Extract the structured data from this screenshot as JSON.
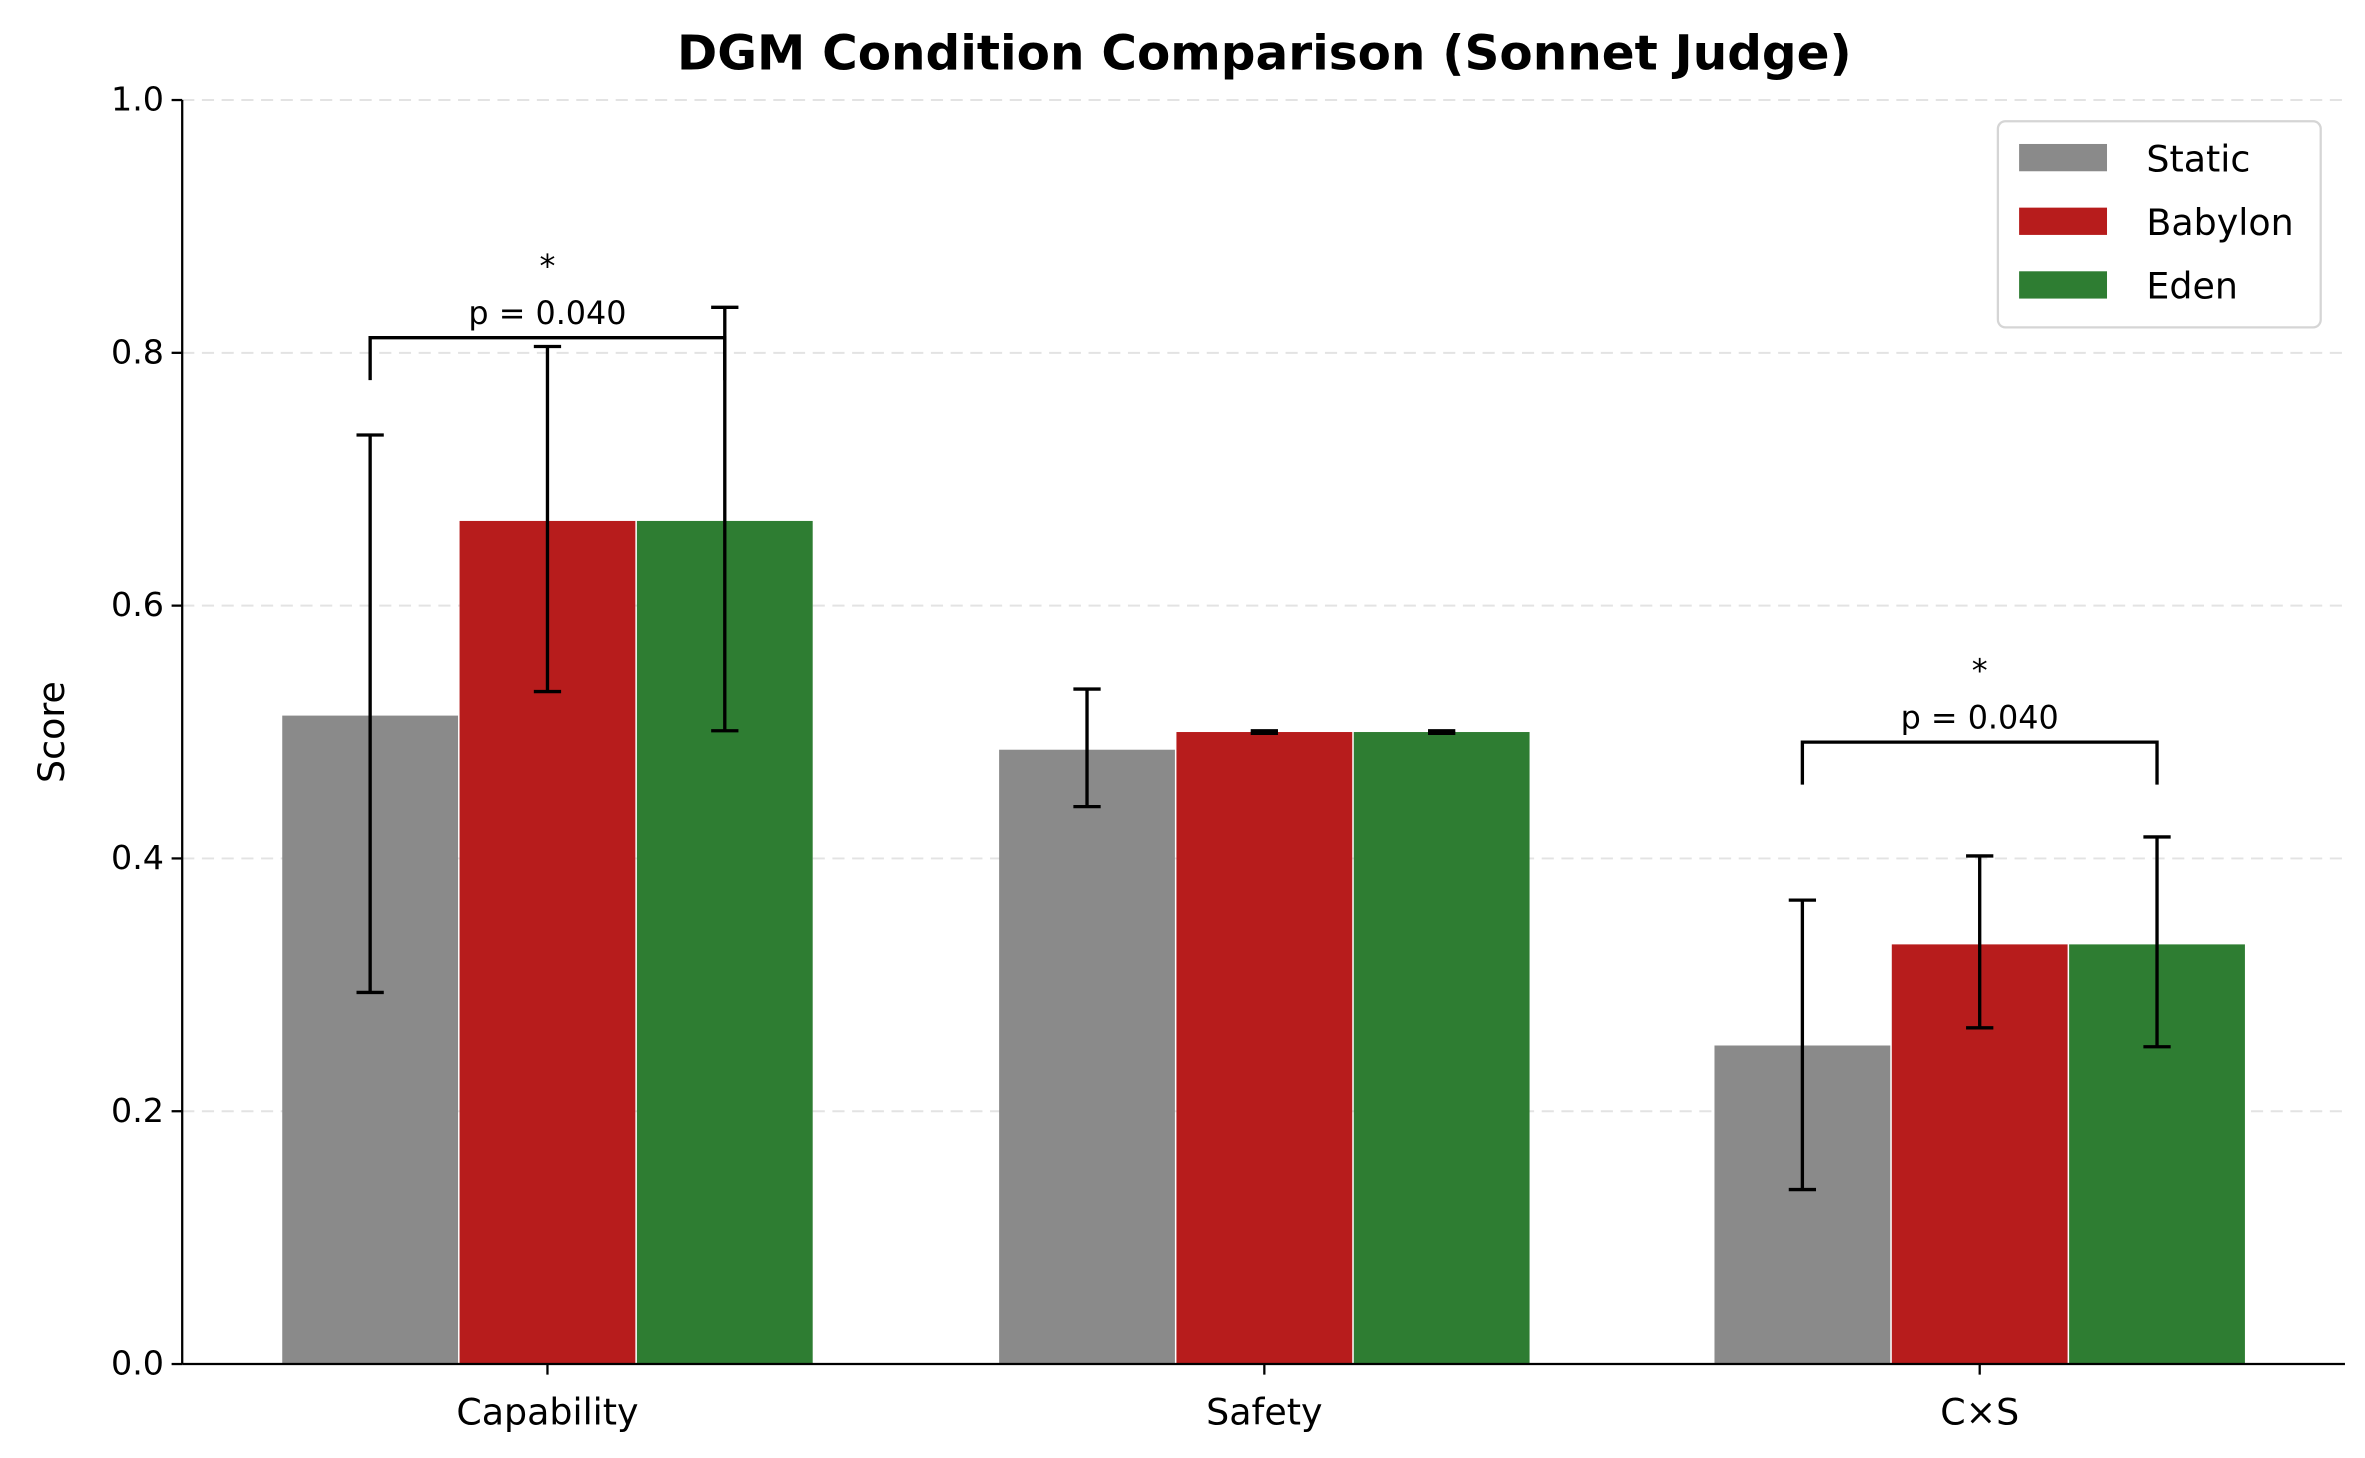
{
  "chart_data": {
    "type": "bar",
    "title": "DGM Condition Comparison (Sonnet Judge)",
    "xlabel": "",
    "ylabel": "Score",
    "ylim": [
      0,
      1.0
    ],
    "yticks": [
      "0.0",
      "0.2",
      "0.4",
      "0.6",
      "0.8",
      "1.0"
    ],
    "grid": "horizontal dashed",
    "legend_placement": "top-right",
    "categories": [
      "Capability",
      "Safety",
      "C×S"
    ],
    "series": [
      {
        "name": "Static",
        "color": "#8a8a8a",
        "values": [
          0.513,
          0.486,
          0.252
        ],
        "err_low": [
          0.294,
          0.441,
          0.138
        ],
        "err_high": [
          0.735,
          0.534,
          0.367
        ]
      },
      {
        "name": "Babylon",
        "color": "#b71c1c",
        "values": [
          0.667,
          0.5,
          0.332
        ],
        "err_low": [
          0.532,
          0.499,
          0.266
        ],
        "err_high": [
          0.805,
          0.501,
          0.402
        ]
      },
      {
        "name": "Eden",
        "color": "#2e7d32",
        "values": [
          0.667,
          0.5,
          0.332
        ],
        "err_low": [
          0.501,
          0.499,
          0.251
        ],
        "err_high": [
          0.836,
          0.501,
          0.417
        ]
      }
    ],
    "annotations": [
      {
        "category": "Capability",
        "from": "Static",
        "to": "Eden",
        "level": 0.812,
        "text": "p = 0.040",
        "stars": "*"
      },
      {
        "category": "C×S",
        "from": "Static",
        "to": "Eden",
        "level": 0.492,
        "text": "p = 0.040",
        "stars": "*"
      }
    ]
  }
}
